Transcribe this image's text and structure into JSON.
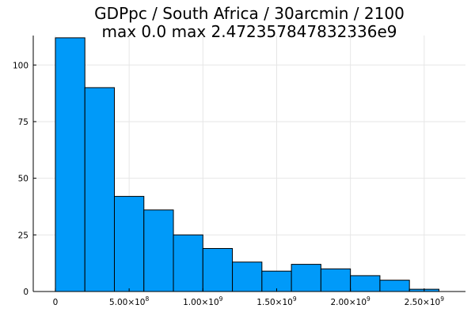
{
  "chart_data": {
    "type": "bar",
    "title": "GDPpc / South Africa / 30arcmin / 2100",
    "subtitle": "max 0.0  max 2.472357847832336e9",
    "bin_edges": [
      0,
      200000000,
      400000000,
      600000000,
      800000000,
      1000000000,
      1200000000,
      1400000000,
      1600000000,
      1800000000,
      2000000000,
      2200000000,
      2400000000,
      2600000000
    ],
    "values": [
      112,
      90,
      42,
      36,
      25,
      19,
      13,
      9,
      12,
      10,
      7,
      5,
      1
    ],
    "xlim": [
      -150000000,
      2780000000
    ],
    "ylim": [
      0,
      113
    ],
    "xticks": [
      {
        "value": 0,
        "base": "0",
        "exp": ""
      },
      {
        "value": 500000000,
        "base": "5.00×10",
        "exp": "8"
      },
      {
        "value": 1000000000,
        "base": "1.00×10",
        "exp": "9"
      },
      {
        "value": 1500000000,
        "base": "1.50×10",
        "exp": "9"
      },
      {
        "value": 2000000000,
        "base": "2.00×10",
        "exp": "9"
      },
      {
        "value": 2500000000,
        "base": "2.50×10",
        "exp": "9"
      }
    ],
    "yticks": [
      {
        "value": 0,
        "label": "0"
      },
      {
        "value": 25,
        "label": "25"
      },
      {
        "value": 50,
        "label": "50"
      },
      {
        "value": 75,
        "label": "75"
      },
      {
        "value": 100,
        "label": "100"
      }
    ],
    "grid": true,
    "bar_color": "#009af9"
  }
}
